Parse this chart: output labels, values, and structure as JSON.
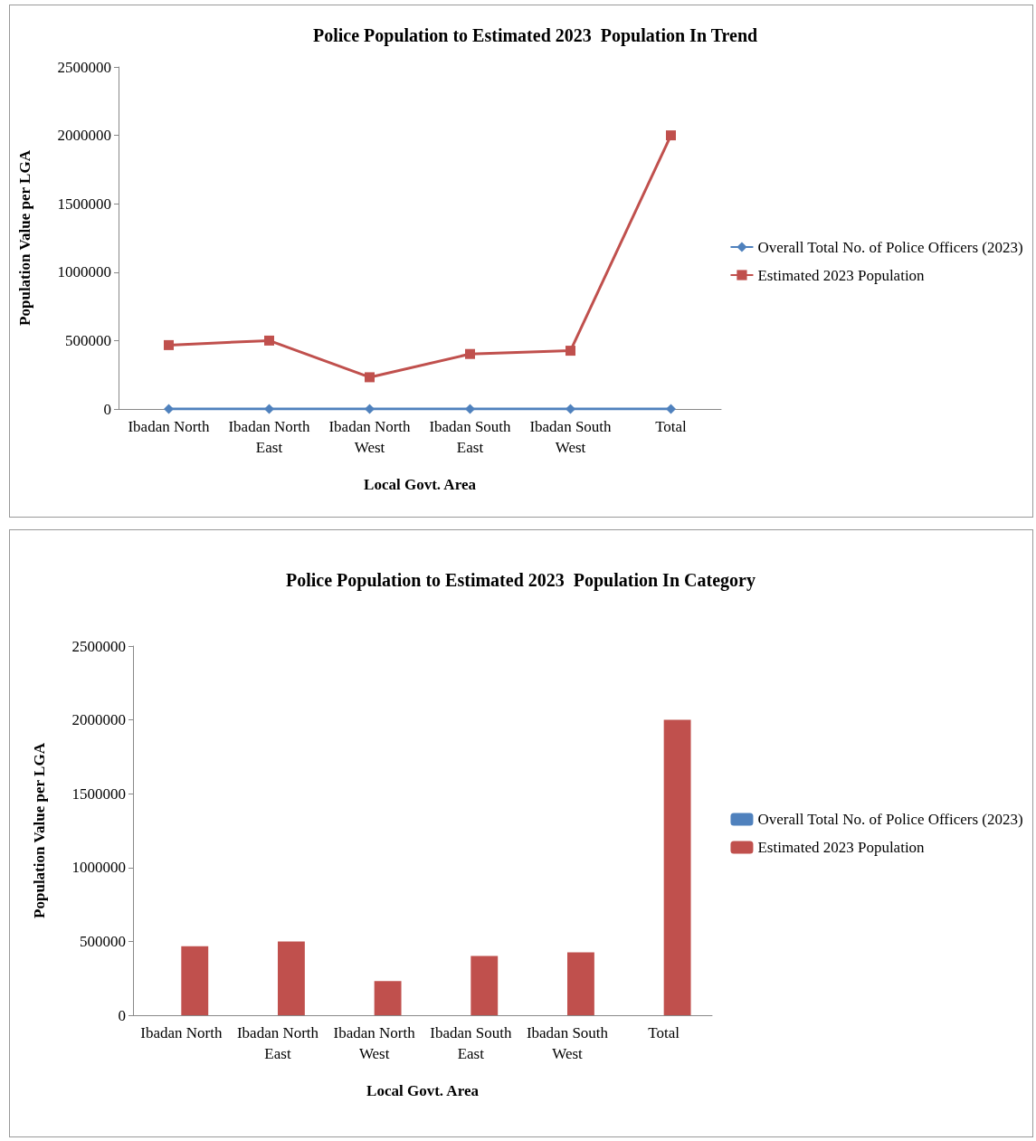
{
  "chart_data": [
    {
      "type": "line",
      "title": "Police Population to Estimated 2023  Population In Trend",
      "xlabel": "Local Govt. Area",
      "ylabel": "Population Value per LGA",
      "categories": [
        "Ibadan North",
        "Ibadan North East",
        "Ibadan North West",
        "Ibadan South East",
        "Ibadan South West",
        "Total"
      ],
      "series": [
        {
          "name": "Overall Total No. of Police Officers (2023)",
          "color": "#4f81bd",
          "marker": "diamond",
          "values": [
            0,
            0,
            0,
            0,
            0,
            0
          ]
        },
        {
          "name": "Estimated 2023 Population",
          "color": "#c0504d",
          "marker": "square",
          "values": [
            467000,
            500000,
            232000,
            402000,
            426000,
            2000000
          ]
        }
      ],
      "ylim": [
        0,
        2500000
      ],
      "yticks": [
        0,
        500000,
        1000000,
        1500000,
        2000000,
        2500000
      ],
      "grid": false,
      "legend": "right",
      "line_style": "solid"
    },
    {
      "type": "bar",
      "title": "Police Population to Estimated 2023  Population In Category",
      "xlabel": "Local Govt. Area",
      "ylabel": "Population Value per LGA",
      "categories": [
        "Ibadan North",
        "Ibadan North East",
        "Ibadan North West",
        "Ibadan South East",
        "Ibadan South West",
        "Total"
      ],
      "series": [
        {
          "name": "Overall Total No. of Police Officers (2023)",
          "color": "#4f81bd",
          "values": [
            0,
            0,
            0,
            0,
            0,
            0
          ]
        },
        {
          "name": "Estimated 2023 Population",
          "color": "#c0504d",
          "values": [
            467000,
            500000,
            232000,
            402000,
            426000,
            2000000
          ]
        }
      ],
      "ylim": [
        0,
        2500000
      ],
      "yticks": [
        0,
        500000,
        1000000,
        1500000,
        2000000,
        2500000
      ],
      "grid": false,
      "legend": "right"
    }
  ]
}
